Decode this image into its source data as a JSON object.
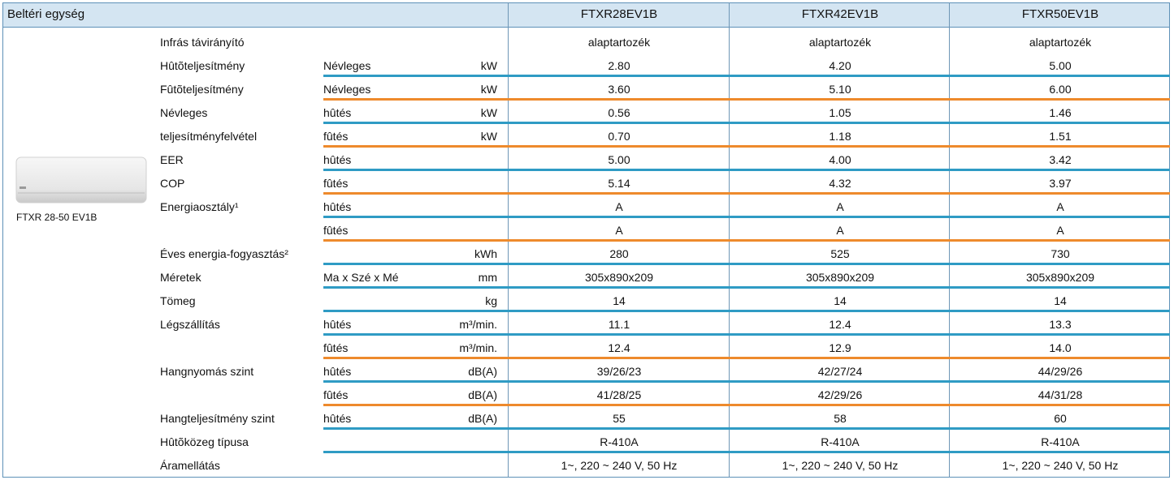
{
  "header": {
    "title": "Beltéri egység",
    "models": [
      "FTXR28EV1B",
      "FTXR42EV1B",
      "FTXR50EV1B"
    ]
  },
  "image_caption": "FTXR 28-50 EV1B",
  "rows": [
    {
      "label": "Infrás távirányító",
      "values": [
        "alaptartozék",
        "alaptartozék",
        "alaptartozék"
      ]
    },
    {
      "label": "Hûtõteljesítmény",
      "sub": "Névleges",
      "unit": "kW",
      "values": [
        "2.80",
        "4.20",
        "5.00"
      ]
    },
    {
      "label": "Fûtõteljesítmény",
      "sub": "Névleges",
      "unit": "kW",
      "values": [
        "3.60",
        "5.10",
        "6.00"
      ]
    },
    {
      "label": "Névleges",
      "sub": "hûtés",
      "unit": "kW",
      "values": [
        "0.56",
        "1.05",
        "1.46"
      ]
    },
    {
      "label": "teljesítményfelvétel",
      "sub": "fûtés",
      "unit": "kW",
      "values": [
        "0.70",
        "1.18",
        "1.51"
      ]
    },
    {
      "label": "EER",
      "sub": "hûtés",
      "values": [
        "5.00",
        "4.00",
        "3.42"
      ]
    },
    {
      "label": "COP",
      "sub": "fûtés",
      "values": [
        "5.14",
        "4.32",
        "3.97"
      ]
    },
    {
      "label": "Energiaosztály¹",
      "sub": "hûtés",
      "values": [
        "A",
        "A",
        "A"
      ]
    },
    {
      "sub": "fûtés",
      "values": [
        "A",
        "A",
        "A"
      ]
    },
    {
      "label": "Éves energia-fogyasztás²",
      "unit": "kWh",
      "values": [
        "280",
        "525",
        "730"
      ]
    },
    {
      "label": "Méretek",
      "sub": "Ma x Szé x Mé",
      "unit": "mm",
      "values": [
        "305x890x209",
        "305x890x209",
        "305x890x209"
      ]
    },
    {
      "label": "Tömeg",
      "unit": "kg",
      "values": [
        "14",
        "14",
        "14"
      ]
    },
    {
      "label": "Légszállítás",
      "sub": "hûtés",
      "unit": "m³/min.",
      "values": [
        "11.1",
        "12.4",
        "13.3"
      ]
    },
    {
      "sub": "fûtés",
      "unit": "m³/min.",
      "values": [
        "12.4",
        "12.9",
        "14.0"
      ]
    },
    {
      "label": "Hangnyomás szint",
      "sub": "hûtés",
      "unit": "dB(A)",
      "values": [
        "39/26/23",
        "42/27/24",
        "44/29/26"
      ]
    },
    {
      "sub": "fûtés",
      "unit": "dB(A)",
      "values": [
        "41/28/25",
        "42/29/26",
        "44/31/28"
      ]
    },
    {
      "label": "Hangteljesítmény szint",
      "sub": "hûtés",
      "unit": "dB(A)",
      "values": [
        "55",
        "58",
        "60"
      ]
    },
    {
      "label": "Hûtõközeg típusa",
      "values": [
        "R-410A",
        "R-410A",
        "R-410A"
      ]
    },
    {
      "label": "Áramellátás",
      "values": [
        "1~, 220 ~ 240 V, 50 Hz",
        "1~, 220 ~ 240 V, 50 Hz",
        "1~, 220 ~ 240 V, 50 Hz"
      ]
    }
  ]
}
